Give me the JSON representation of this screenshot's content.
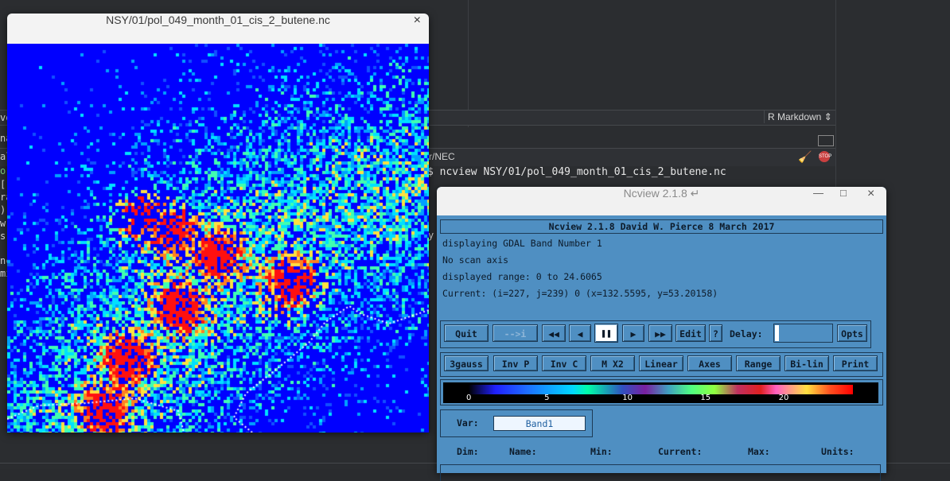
{
  "background": {
    "editor_mode": "R Markdown",
    "console_path": "r/NEC",
    "console_command": "$ ncview NSY/01/pol_049_month_01_cis_2_butene.nc",
    "console_fragments": [
      "ve",
      "na",
      "al",
      "o-",
      "[",
      "ra",
      ")",
      "w",
      "s",
      "nc",
      "mi"
    ],
    "console_y": "y"
  },
  "map_window": {
    "title": "NSY/01/pol_049_month_01_cis_2_butene.nc",
    "close_glyph": "×"
  },
  "ncview": {
    "title": "Ncview 2.1.8 ↵",
    "minimize_glyph": "—",
    "maximize_glyph": "□",
    "close_glyph": "×",
    "header": "Ncview 2.1.8 David W. Pierce  8 March 2017",
    "info": [
      "displaying GDAL Band Number 1",
      "No scan axis",
      "displayed range: 0 to 24.6065",
      "Current: (i=227, j=239) 0 (x=132.5595, y=53.20158)"
    ],
    "buttons": {
      "quit": "Quit",
      "restart": "-->i",
      "rewind": "◀◀",
      "back": "◀",
      "pause": "❚❚",
      "forward": "▶",
      "fastforward": "▶▶",
      "edit": "Edit",
      "help": "?",
      "delay_label": "Delay:",
      "opts": "Opts"
    },
    "option_buttons": [
      "3gauss",
      "Inv P",
      "Inv C",
      "M X2",
      "Linear",
      "Axes",
      "Range",
      "Bi-lin",
      "Print"
    ],
    "colorbar_ticks": [
      "0",
      "5",
      "10",
      "15",
      "20"
    ],
    "colorbar_tick_values": [
      0,
      5,
      10,
      15,
      20
    ],
    "var_label": "Var:",
    "var_value": "Band1",
    "dim_headers": [
      "Dim:",
      "Name:",
      "Min:",
      "Current:",
      "Max:",
      "Units:"
    ]
  }
}
